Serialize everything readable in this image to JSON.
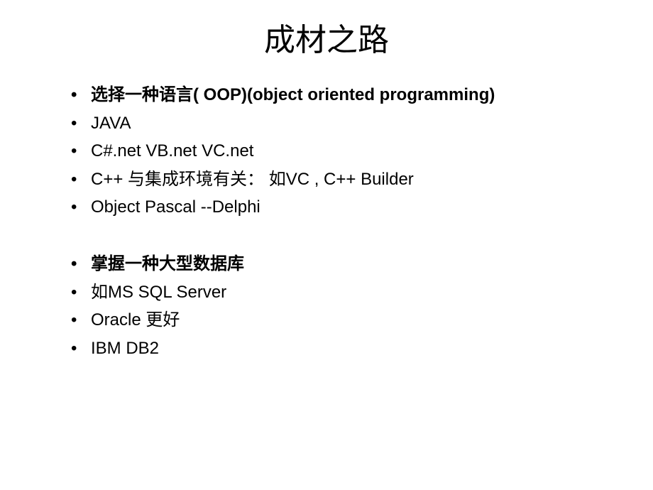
{
  "slide": {
    "title": "成材之路",
    "title_fontsize": 44,
    "title_color": "#000000",
    "background_color": "#ffffff",
    "text_color": "#000000",
    "bullet_fontsize": 24,
    "items": [
      {
        "text": "选择一种语言( OOP)(object oriented programming)",
        "bold": true
      },
      {
        "text": "JAVA",
        "bold": false
      },
      {
        "text": " C#.net  VB.net  VC.net",
        "bold": false
      },
      {
        "text": "C++  与集成环境有关：  如VC , C++ Builder",
        "bold": false
      },
      {
        "text": "Object Pascal --Delphi",
        "bold": false
      }
    ],
    "items2": [
      {
        "text": "掌握一种大型数据库",
        "bold": true
      },
      {
        "text": " 如MS SQL Server",
        "bold": false
      },
      {
        "text": "Oracle   更好",
        "bold": false
      },
      {
        "text": " IBM DB2",
        "bold": false
      }
    ]
  }
}
